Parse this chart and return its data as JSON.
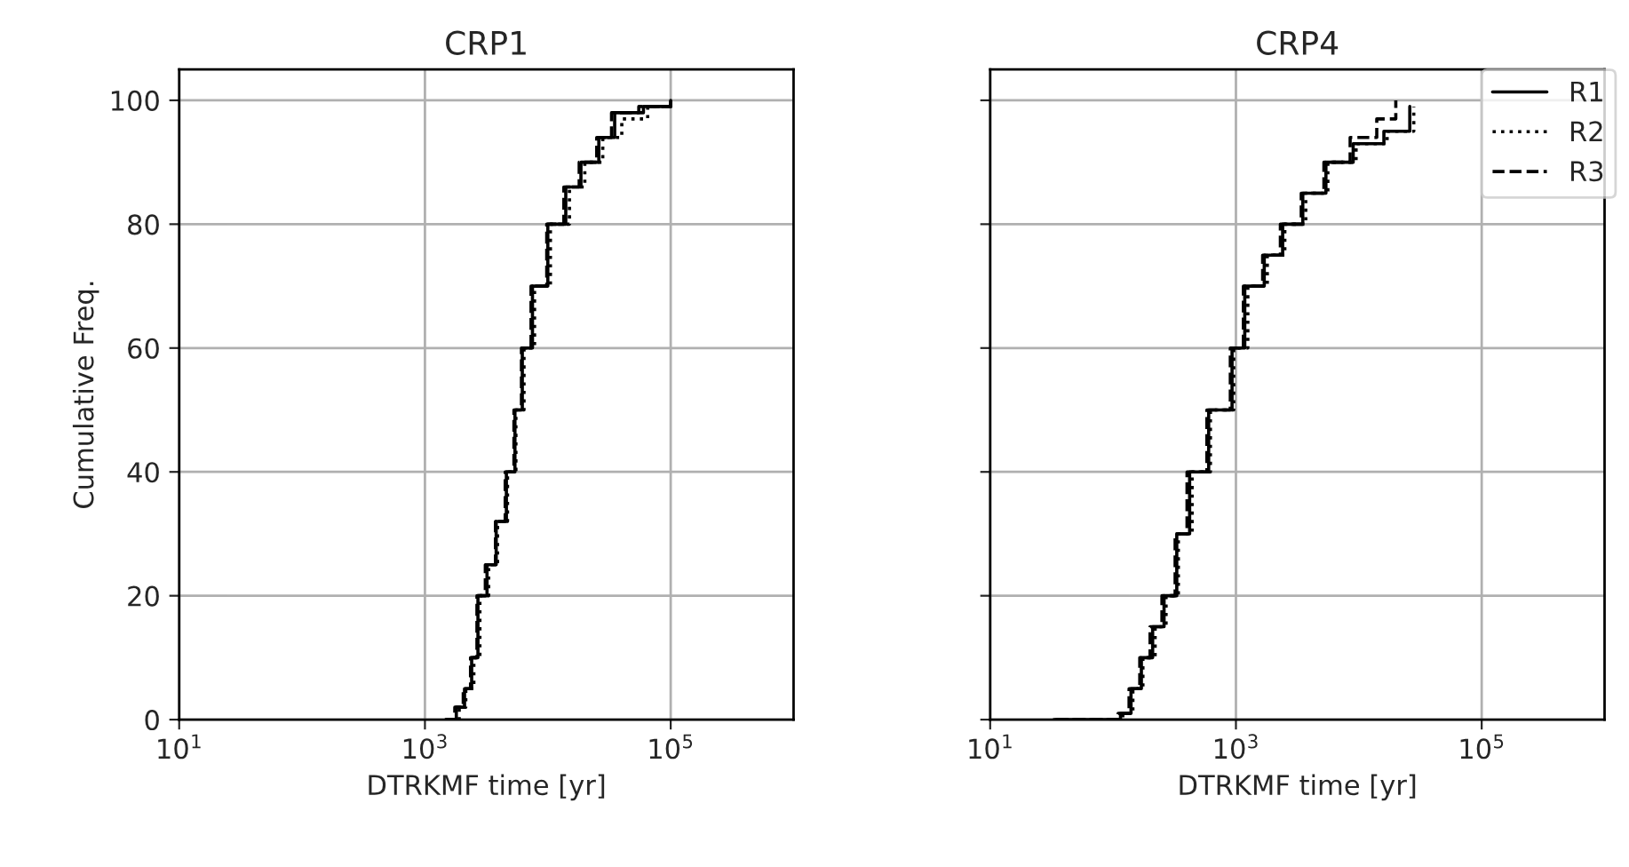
{
  "chart_data": [
    {
      "type": "step",
      "title": "CRP1",
      "xlabel": "DTRKMF time [yr]",
      "ylabel": "Cumulative Freq.",
      "log": "x",
      "grid": true,
      "legend": false,
      "marker": "none",
      "xlim": [
        10,
        1000000
      ],
      "ylim": [
        0,
        105
      ],
      "xticks": [
        {
          "value": 10,
          "label": "10$^{1}$"
        },
        {
          "value": 1000,
          "label": "10$^{3}$"
        },
        {
          "value": 100000,
          "label": "10$^{5}$"
        }
      ],
      "yticks": [
        0,
        20,
        40,
        60,
        80,
        100
      ],
      "series": [
        {
          "color": "#000000",
          "line_style": "solid",
          "x": [
            1500,
            1800,
            2100,
            2400,
            2700,
            3200,
            3800,
            4600,
            5400,
            6200,
            7500,
            10000,
            14000,
            18600,
            26000,
            35000,
            60000,
            100000
          ],
          "values": [
            0,
            2,
            5,
            10,
            20,
            25,
            32,
            40,
            50,
            60,
            70,
            80,
            86,
            90,
            94,
            98,
            99,
            100
          ]
        },
        {
          "color": "#000000",
          "line_style": "dotted",
          "x": [
            1600,
            1900,
            2150,
            2500,
            2800,
            3300,
            3900,
            4700,
            5500,
            6400,
            7800,
            10500,
            15000,
            20000,
            28000,
            40000,
            65000,
            100000
          ],
          "values": [
            0,
            2,
            5,
            10,
            20,
            25,
            32,
            40,
            50,
            60,
            70,
            80,
            86,
            90,
            94,
            97,
            99,
            100
          ]
        },
        {
          "color": "#000000",
          "line_style": "dashed",
          "x": [
            1450,
            1750,
            2050,
            2350,
            2650,
            3100,
            3750,
            4500,
            5300,
            6100,
            7300,
            9800,
            13500,
            18000,
            25000,
            33000,
            55000,
            100000
          ],
          "values": [
            0,
            2,
            5,
            10,
            20,
            25,
            32,
            40,
            50,
            60,
            70,
            80,
            86,
            90,
            94,
            98,
            99,
            100
          ]
        }
      ]
    },
    {
      "type": "step",
      "title": "CRP4",
      "xlabel": "DTRKMF time [yr]",
      "log": "x",
      "grid": true,
      "legend": "top right",
      "marker": "none",
      "tick_labels": "x",
      "xlim": [
        10,
        1000000
      ],
      "ylim": [
        0,
        105
      ],
      "xticks": [
        {
          "value": 10,
          "label": "10$^{1}$"
        },
        {
          "value": 1000,
          "label": "10$^{3}$"
        },
        {
          "value": 100000,
          "label": "10$^{5}$"
        }
      ],
      "yticks": [
        0,
        20,
        40,
        60,
        80,
        100
      ],
      "series": [
        {
          "name": "R1",
          "color": "#000000",
          "line_style": "solid",
          "x": [
            33,
            60,
            115,
            140,
            170,
            210,
            260,
            330,
            420,
            600,
            930,
            1180,
            1700,
            2400,
            3500,
            5400,
            9000,
            16000,
            26000
          ],
          "values": [
            0,
            0,
            1,
            5,
            10,
            15,
            20,
            30,
            40,
            50,
            60,
            70,
            75,
            80,
            85,
            90,
            93,
            95,
            99
          ]
        },
        {
          "name": "R2",
          "color": "#000000",
          "line_style": "dotted",
          "x": [
            35,
            65,
            120,
            145,
            175,
            220,
            270,
            340,
            440,
            620,
            960,
            1250,
            1800,
            2500,
            3700,
            5600,
            9500,
            17000,
            28000
          ],
          "values": [
            0,
            0,
            1,
            5,
            10,
            15,
            20,
            30,
            40,
            50,
            60,
            70,
            75,
            80,
            85,
            90,
            93,
            95,
            99
          ]
        },
        {
          "name": "R3",
          "color": "#000000",
          "line_style": "dashed",
          "x": [
            34,
            62,
            110,
            135,
            165,
            200,
            250,
            320,
            400,
            580,
            900,
            1150,
            1650,
            2300,
            3400,
            5200,
            8500,
            14000,
            20000
          ],
          "values": [
            0,
            0,
            1,
            5,
            10,
            15,
            20,
            30,
            40,
            50,
            60,
            70,
            75,
            80,
            85,
            90,
            94,
            97,
            100
          ]
        }
      ]
    }
  ]
}
